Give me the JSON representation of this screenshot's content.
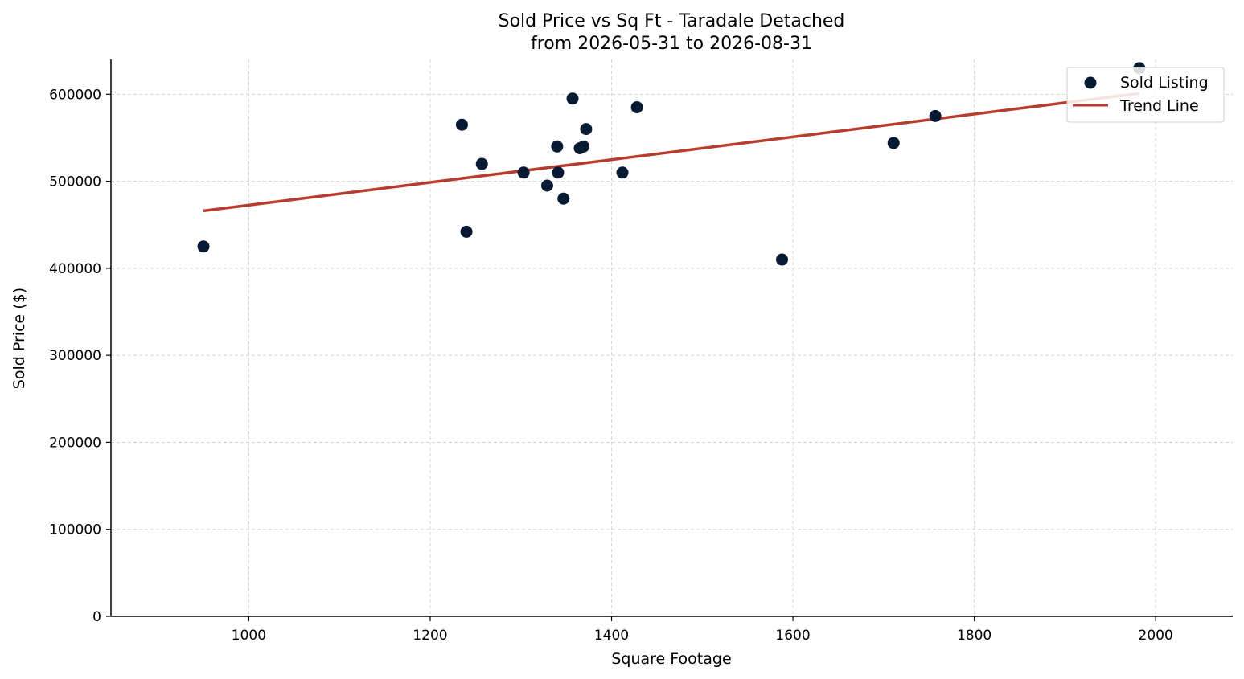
{
  "chart_data": {
    "type": "scatter",
    "title": "Sold Price vs Sq Ft - Taradale Detached",
    "subtitle": "from 2026-05-31 to 2026-08-31",
    "xlabel": "Square Footage",
    "ylabel": "Sold Price ($)",
    "xlim": [
      848,
      2085
    ],
    "ylim": [
      0,
      640000
    ],
    "x_ticks": [
      1000,
      1200,
      1400,
      1600,
      1800,
      2000
    ],
    "y_ticks": [
      0,
      100000,
      200000,
      300000,
      400000,
      500000,
      600000
    ],
    "grid": true,
    "legend_position": "top-right",
    "series": [
      {
        "name": "Sold Listing",
        "kind": "scatter",
        "color": "#061a33",
        "points": [
          [
            950,
            425000
          ],
          [
            1235,
            565000
          ],
          [
            1240,
            442000
          ],
          [
            1257,
            520000
          ],
          [
            1303,
            510000
          ],
          [
            1329,
            495000
          ],
          [
            1340,
            540000
          ],
          [
            1341,
            510000
          ],
          [
            1347,
            480000
          ],
          [
            1357,
            595000
          ],
          [
            1365,
            538000
          ],
          [
            1369,
            540000
          ],
          [
            1372,
            560000
          ],
          [
            1412,
            510000
          ],
          [
            1428,
            585000
          ],
          [
            1588,
            410000
          ],
          [
            1711,
            544000
          ],
          [
            1757,
            575000
          ],
          [
            1982,
            630000
          ]
        ]
      },
      {
        "name": "Trend Line",
        "kind": "line",
        "color": "#b83c2e",
        "points": [
          [
            950,
            466000
          ],
          [
            1982,
            601000
          ]
        ]
      }
    ]
  }
}
